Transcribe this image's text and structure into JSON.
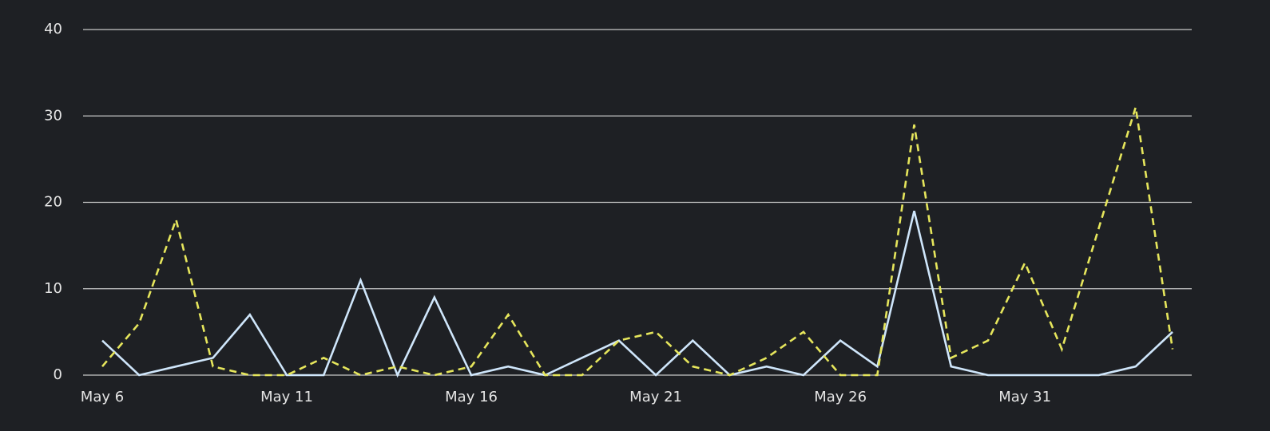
{
  "chart_data": {
    "type": "line",
    "categories": [
      "May 6",
      null,
      null,
      null,
      null,
      "May 11",
      null,
      null,
      null,
      null,
      "May 16",
      null,
      null,
      null,
      null,
      "May 21",
      null,
      null,
      null,
      null,
      "May 26",
      null,
      null,
      null,
      null,
      "May 31",
      null,
      null,
      null,
      null
    ],
    "series": [
      {
        "color": "#cfe6fb",
        "dashed": false,
        "values": [
          4,
          0,
          1,
          2,
          7,
          0,
          0,
          11,
          0,
          9,
          0,
          1,
          0,
          2,
          4,
          0,
          4,
          0,
          1,
          0,
          4,
          1,
          19,
          1,
          0,
          0,
          0,
          0,
          1,
          5
        ]
      },
      {
        "color": "#e6e65c",
        "dashed": true,
        "values": [
          1,
          6,
          18,
          1,
          0,
          0,
          2,
          0,
          1,
          0,
          1,
          7,
          0,
          0,
          4,
          5,
          1,
          0,
          2,
          5,
          0,
          0,
          29,
          2,
          4,
          13,
          3,
          17,
          31,
          3
        ]
      }
    ],
    "ylim": [
      0,
      40
    ],
    "yticks": [
      0,
      10,
      20,
      30,
      40
    ],
    "grid": true
  }
}
